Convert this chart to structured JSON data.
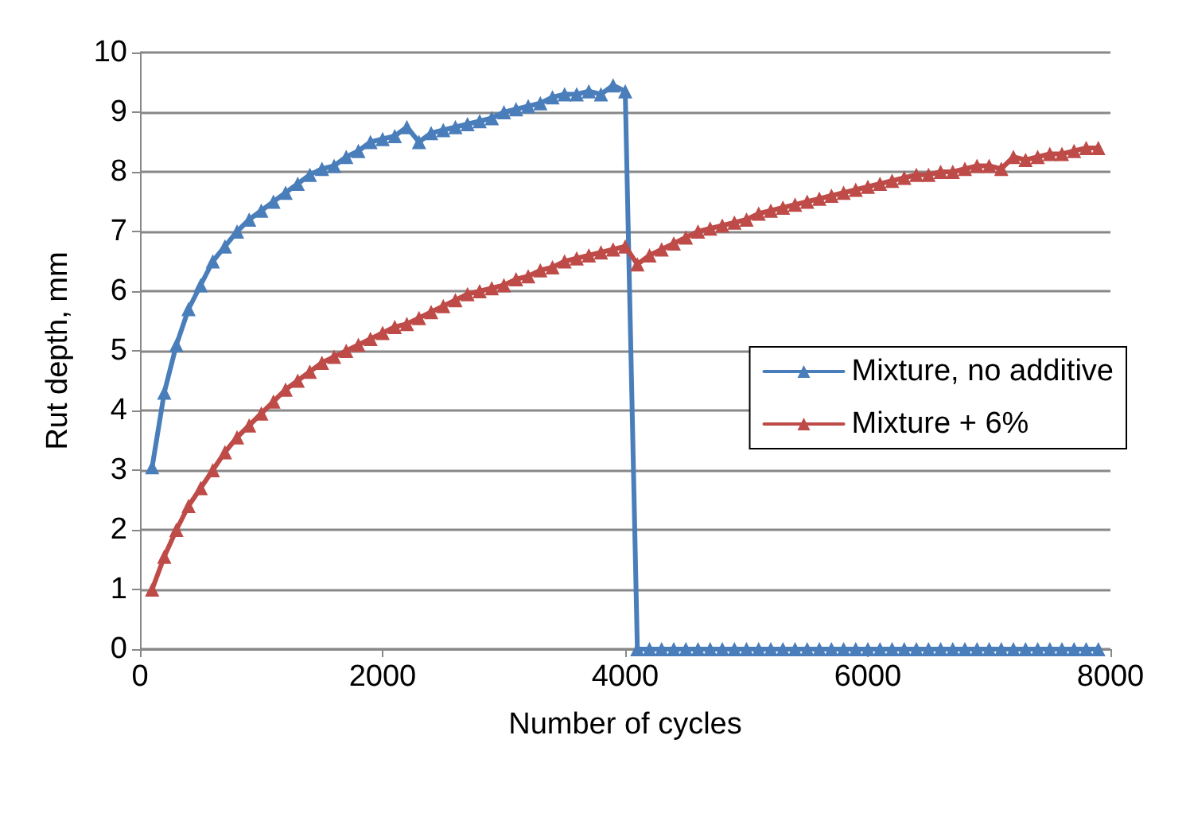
{
  "chart_data": {
    "type": "line",
    "xlabel": "Number of cycles",
    "ylabel": "Rut depth, mm",
    "x": [
      100,
      200,
      300,
      400,
      500,
      600,
      700,
      800,
      900,
      1000,
      1100,
      1200,
      1300,
      1400,
      1500,
      1600,
      1700,
      1800,
      1900,
      2000,
      2100,
      2200,
      2300,
      2400,
      2500,
      2600,
      2700,
      2800,
      2900,
      3000,
      3100,
      3200,
      3300,
      3400,
      3500,
      3600,
      3700,
      3800,
      3900,
      4000,
      4100,
      4200,
      4300,
      4400,
      4500,
      4600,
      4700,
      4800,
      4900,
      5000,
      5100,
      5200,
      5300,
      5400,
      5500,
      5600,
      5700,
      5800,
      5900,
      6000,
      6100,
      6200,
      6300,
      6400,
      6500,
      6600,
      6700,
      6800,
      6900,
      7000,
      7100,
      7200,
      7300,
      7400,
      7500,
      7600,
      7700,
      7800,
      7900
    ],
    "series": [
      {
        "name": "Mixture, no additive",
        "color": "#4a7ebb",
        "values": [
          3.05,
          4.3,
          5.1,
          5.7,
          6.1,
          6.5,
          6.75,
          7.0,
          7.2,
          7.35,
          7.5,
          7.65,
          7.8,
          7.95,
          8.05,
          8.1,
          8.25,
          8.35,
          8.5,
          8.55,
          8.6,
          8.75,
          8.5,
          8.65,
          8.7,
          8.75,
          8.8,
          8.85,
          8.9,
          9.0,
          9.05,
          9.1,
          9.15,
          9.25,
          9.3,
          9.3,
          9.35,
          9.3,
          9.45,
          9.35,
          0,
          0,
          0,
          0,
          0,
          0,
          0,
          0,
          0,
          0,
          0,
          0,
          0,
          0,
          0,
          0,
          0,
          0,
          0,
          0,
          0,
          0,
          0,
          0,
          0,
          0,
          0,
          0,
          0,
          0,
          0,
          0,
          0,
          0,
          0,
          0,
          0,
          0,
          0
        ]
      },
      {
        "name": "Mixture + 6%",
        "color": "#be4b48",
        "values": [
          1.0,
          1.55,
          2.0,
          2.4,
          2.7,
          3.0,
          3.3,
          3.55,
          3.75,
          3.95,
          4.15,
          4.35,
          4.5,
          4.65,
          4.8,
          4.9,
          5.0,
          5.1,
          5.2,
          5.3,
          5.4,
          5.45,
          5.55,
          5.65,
          5.75,
          5.85,
          5.95,
          6.0,
          6.05,
          6.1,
          6.2,
          6.25,
          6.35,
          6.4,
          6.5,
          6.55,
          6.6,
          6.65,
          6.7,
          6.75,
          6.45,
          6.6,
          6.7,
          6.8,
          6.9,
          7.0,
          7.05,
          7.1,
          7.15,
          7.2,
          7.3,
          7.35,
          7.4,
          7.45,
          7.5,
          7.55,
          7.6,
          7.65,
          7.7,
          7.75,
          7.8,
          7.85,
          7.9,
          7.95,
          7.95,
          8.0,
          8.0,
          8.05,
          8.1,
          8.1,
          8.05,
          8.25,
          8.2,
          8.25,
          8.3,
          8.3,
          8.35,
          8.4,
          8.4
        ]
      }
    ],
    "xlim": [
      0,
      8000
    ],
    "xticks": [
      0,
      2000,
      4000,
      6000,
      8000
    ],
    "ylim": [
      0,
      10
    ],
    "yticks": [
      0,
      1,
      2,
      3,
      4,
      5,
      6,
      7,
      8,
      9,
      10
    ],
    "grid": "y",
    "legend": "right",
    "marker": "triangle",
    "line_style": "solid"
  }
}
